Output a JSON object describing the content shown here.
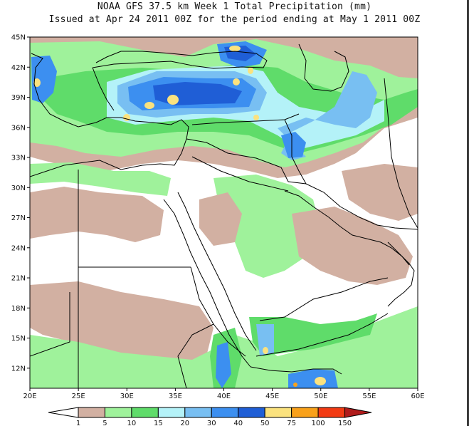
{
  "title_line1": "NOAA GFS 37.5 km Week 1 Total Precipitation (mm)",
  "title_line2": "Issued at Apr 24 2011 00Z for the period ending at May 1 2011 00Z",
  "map": {
    "lon_range": [
      20,
      60
    ],
    "lat_range": [
      10,
      45
    ],
    "lat_ticks": [
      "45N",
      "42N",
      "39N",
      "36N",
      "33N",
      "30N",
      "27N",
      "24N",
      "21N",
      "18N",
      "15N",
      "12N"
    ],
    "lat_values": [
      45,
      42,
      39,
      36,
      33,
      30,
      27,
      24,
      21,
      18,
      15,
      12
    ],
    "lon_ticks": [
      "20E",
      "25E",
      "30E",
      "35E",
      "40E",
      "45E",
      "50E",
      "55E",
      "60E"
    ],
    "lon_values": [
      20,
      25,
      30,
      35,
      40,
      45,
      50,
      55,
      60
    ]
  },
  "legend": {
    "labels": [
      "1",
      "5",
      "10",
      "15",
      "20",
      "30",
      "40",
      "50",
      "75",
      "100",
      "150"
    ],
    "colors": [
      "#d2b0a2",
      "#9ff29b",
      "#5fdc6a",
      "#b4f2f8",
      "#78bff2",
      "#3c8ff0",
      "#1f5ed6",
      "#fbe27e",
      "#f9a11a",
      "#f23a13",
      "#b01b1b"
    ],
    "low_color": "#ffffff"
  },
  "colors": {
    "tan": "#d2b0a2",
    "light_green": "#9ff29b",
    "green": "#5fdc6a",
    "cyan": "#b4f2f8",
    "light_blue": "#78bff2",
    "blue": "#3c8ff0",
    "dark_blue": "#1f5ed6",
    "yellow": "#fbe27e",
    "orange": "#f9a11a"
  }
}
